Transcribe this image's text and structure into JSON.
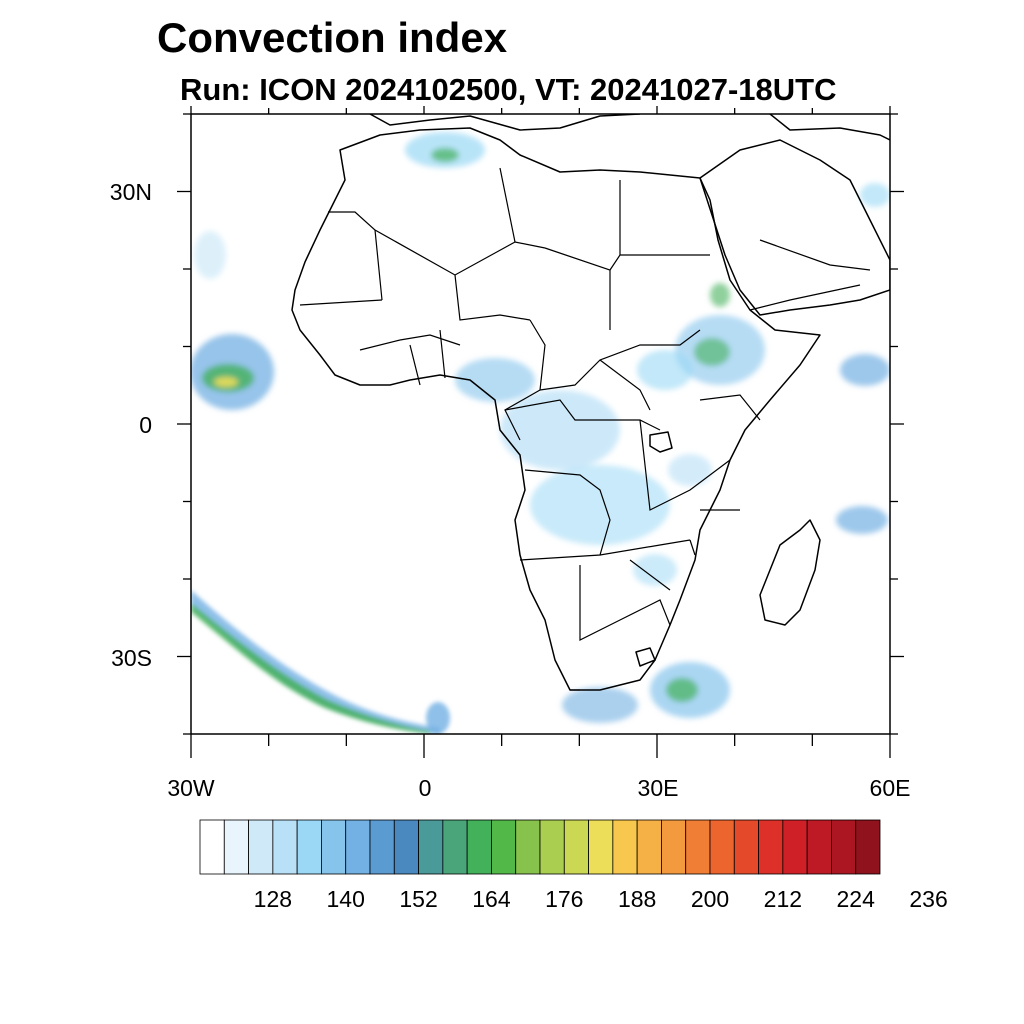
{
  "title": "Convection index",
  "subtitle": "Run: ICON 2024102500,  VT: 20241027-18UTC",
  "axes": {
    "y_labels": [
      "30N",
      "0",
      "30S"
    ],
    "x_labels": [
      "30W",
      "0",
      "30E",
      "60E"
    ],
    "lon_range": [
      -30,
      60
    ],
    "lat_range": [
      -40,
      40
    ]
  },
  "colorbar": {
    "labels": [
      "128",
      "140",
      "152",
      "164",
      "176",
      "188",
      "200",
      "212",
      "224",
      "236"
    ],
    "colors": [
      "#ffffff",
      "#e9f5fc",
      "#cfe9f8",
      "#b8e0f6",
      "#9ad8f5",
      "#86c4ec",
      "#73b0e3",
      "#5a9bd2",
      "#4a88c0",
      "#4a9a9a",
      "#4aa67a",
      "#43b05a",
      "#52b848",
      "#86c24c",
      "#a9ce50",
      "#cbd854",
      "#ecde58",
      "#f8c84e",
      "#f6b146",
      "#f49a3e",
      "#f07f35",
      "#ec642e",
      "#e44a2a",
      "#dc3028",
      "#cf2028",
      "#be1a26",
      "#ab1622",
      "#8f121c"
    ]
  },
  "map": {
    "land_fill": "#ffffff",
    "border_color": "#000000",
    "shade_light": "#9ad8f5",
    "shade_mid": "#5a9bd2",
    "shade_green": "#43b05a",
    "shade_yellow": "#ecde58",
    "shade_orange": "#f49a3e"
  }
}
